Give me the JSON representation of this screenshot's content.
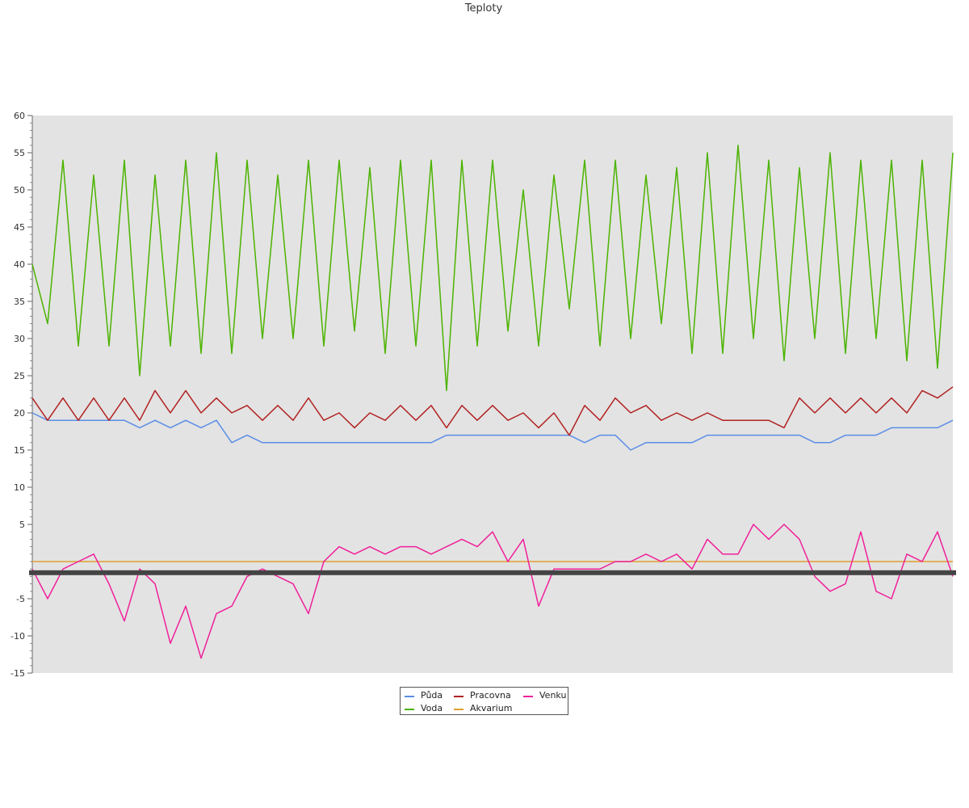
{
  "chart_data": {
    "type": "line",
    "title": "Teploty",
    "xlabel": "",
    "ylabel": "",
    "ylim": [
      -15,
      60
    ],
    "yticks": [
      -15,
      -10,
      -5,
      5,
      10,
      15,
      20,
      25,
      30,
      35,
      40,
      45,
      50,
      55,
      60
    ],
    "y_minor_step": 1,
    "x": [
      0,
      1,
      2,
      3,
      4,
      5,
      6,
      7,
      8,
      9,
      10,
      11,
      12,
      13,
      14,
      15,
      16,
      17,
      18,
      19,
      20,
      21,
      22,
      23,
      24,
      25,
      26,
      27,
      28,
      29,
      30,
      31,
      32,
      33,
      34,
      35,
      36,
      37,
      38,
      39,
      40,
      41,
      42,
      43,
      44,
      45,
      46,
      47,
      48,
      49,
      50,
      51,
      52,
      53,
      54,
      55,
      56,
      57,
      58,
      59,
      60
    ],
    "xlim": [
      0,
      60
    ],
    "grid": false,
    "background": "#e3e3e3",
    "legend_position": "bottom-center",
    "baseline": {
      "value": -1.5,
      "color": "#444444"
    },
    "series": [
      {
        "name": "Půda",
        "color": "#5b8ee6",
        "values": [
          20,
          19,
          19,
          19,
          19,
          19,
          19,
          18,
          19,
          18,
          19,
          18,
          19,
          16,
          17,
          16,
          16,
          16,
          16,
          16,
          16,
          16,
          16,
          16,
          16,
          16,
          16,
          17,
          17,
          17,
          17,
          17,
          17,
          17,
          17,
          17,
          16,
          17,
          17,
          15,
          16,
          16,
          16,
          16,
          17,
          17,
          17,
          17,
          17,
          17,
          17,
          16,
          16,
          17,
          17,
          17,
          18,
          18,
          18,
          18,
          19
        ]
      },
      {
        "name": "Voda",
        "color": "#4cb300",
        "values": [
          40,
          32,
          54,
          29,
          52,
          29,
          54,
          25,
          52,
          29,
          54,
          28,
          55,
          28,
          54,
          30,
          52,
          30,
          54,
          29,
          54,
          31,
          53,
          28,
          54,
          29,
          54,
          23,
          54,
          29,
          54,
          31,
          50,
          29,
          52,
          34,
          54,
          29,
          54,
          30,
          52,
          32,
          53,
          28,
          55,
          28,
          56,
          30,
          54,
          27,
          53,
          30,
          55,
          28,
          54,
          30,
          54,
          27,
          54,
          26,
          55
        ]
      },
      {
        "name": "Pracovna",
        "color": "#b22222",
        "values": [
          22,
          19,
          22,
          19,
          22,
          19,
          22,
          19,
          23,
          20,
          23,
          20,
          22,
          20,
          21,
          19,
          21,
          19,
          22,
          19,
          20,
          18,
          20,
          19,
          21,
          19,
          21,
          18,
          21,
          19,
          21,
          19,
          20,
          18,
          20,
          17,
          21,
          19,
          22,
          20,
          21,
          19,
          20,
          19,
          20,
          19,
          19,
          19,
          19,
          18,
          22,
          20,
          22,
          20,
          22,
          20,
          22,
          20,
          23,
          22,
          23.5
        ]
      },
      {
        "name": "Akvarium",
        "color": "#e0a030",
        "values": [
          0,
          0,
          0,
          0,
          0,
          0,
          0,
          0,
          0,
          0,
          0,
          0,
          0,
          0,
          0,
          0,
          0,
          0,
          0,
          0,
          0,
          0,
          0,
          0,
          0,
          0,
          0,
          0,
          0,
          0,
          0,
          0,
          0,
          0,
          0,
          0,
          0,
          0,
          0,
          0,
          0,
          0,
          0,
          0,
          0,
          0,
          0,
          0,
          0,
          0,
          0,
          0,
          0,
          0,
          0,
          0,
          0,
          0,
          0,
          0,
          0
        ]
      },
      {
        "name": "Venku",
        "color": "#f0209a",
        "values": [
          -1,
          -5,
          -1,
          0,
          1,
          -3,
          -8,
          -1,
          -3,
          -11,
          -6,
          -13,
          -7,
          -6,
          -2,
          -1,
          -2,
          -3,
          -7,
          0,
          2,
          1,
          2,
          1,
          2,
          2,
          1,
          2,
          3,
          2,
          4,
          0,
          3,
          -6,
          -1,
          -1,
          -1,
          -1,
          0,
          0,
          1,
          0,
          1,
          -1,
          3,
          1,
          1,
          5,
          3,
          5,
          3,
          -2,
          -4,
          -3,
          4,
          -4,
          -5,
          1,
          0,
          4,
          -2
        ]
      }
    ]
  }
}
